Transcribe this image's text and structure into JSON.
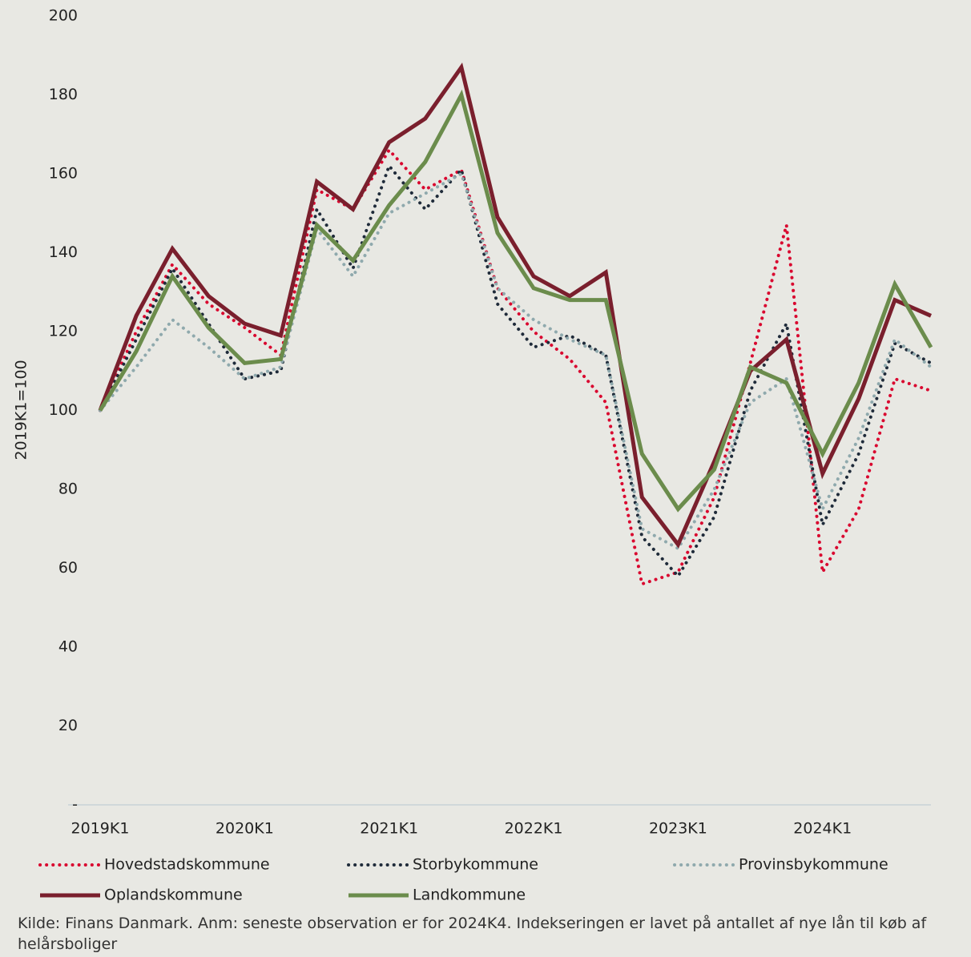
{
  "chart_data": {
    "type": "line",
    "y_label": "2019K1=100",
    "note": "Kilde: Finans Danmark. Anm: seneste observation er for 2024K4. Indekseringen er lavet på antallet af nye lån til køb af helårsboliger",
    "categories": [
      "2019K1",
      null,
      null,
      null,
      "2020K1",
      null,
      null,
      null,
      "2021K1",
      null,
      null,
      null,
      "2022K1",
      null,
      null,
      null,
      "2023K1",
      null,
      null,
      null,
      "2024K1",
      null,
      null,
      null
    ],
    "ylim": [
      0,
      200
    ],
    "yticks": [
      {
        "value": 0,
        "label": "-"
      },
      20,
      40,
      60,
      80,
      100,
      120,
      140,
      160,
      180,
      200
    ],
    "grid": false,
    "series": [
      {
        "name": "Hovedstadskommune",
        "color": "#d9072f",
        "style": "dotted",
        "values": [
          100,
          120,
          137,
          127,
          121,
          114,
          156,
          151,
          166,
          156,
          161,
          131,
          120,
          113,
          102,
          56,
          59,
          78,
          112,
          147,
          59,
          75,
          108,
          105
        ]
      },
      {
        "name": "Storbykommune",
        "color": "#1f2b3a",
        "style": "dotted",
        "values": [
          100,
          118,
          136,
          122,
          108,
          110,
          151,
          136,
          162,
          151,
          161,
          127,
          116,
          119,
          114,
          68,
          58,
          73,
          105,
          122,
          71,
          89,
          117,
          112
        ]
      },
      {
        "name": "Provinsbykommune",
        "color": "#8fa9ad",
        "style": "dotted",
        "values": [
          100,
          111,
          123,
          116,
          108,
          111,
          146,
          134,
          150,
          155,
          160,
          131,
          123,
          118,
          114,
          70,
          65,
          80,
          102,
          108,
          75,
          93,
          118,
          111
        ]
      },
      {
        "name": "Oplandskommune",
        "color": "#7a1f2d",
        "style": "solid",
        "values": [
          100,
          124,
          141,
          129,
          122,
          119,
          158,
          151,
          168,
          174,
          187,
          149,
          134,
          129,
          135,
          78,
          66,
          87,
          110,
          118,
          84,
          103,
          128,
          124
        ]
      },
      {
        "name": "Landkommune",
        "color": "#6b8c4c",
        "style": "solid",
        "values": [
          100,
          115,
          134,
          121,
          112,
          113,
          147,
          138,
          152,
          163,
          180,
          145,
          131,
          128,
          128,
          89,
          75,
          85,
          111,
          107,
          89,
          107,
          132,
          116
        ]
      }
    ]
  }
}
